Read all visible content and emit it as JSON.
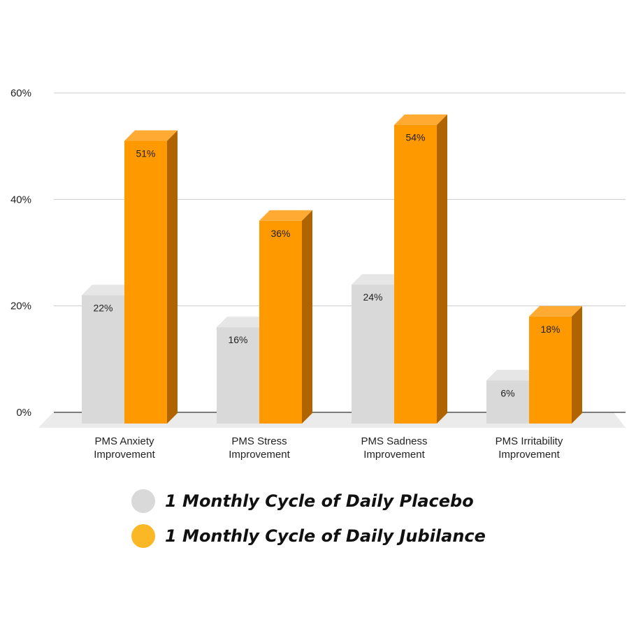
{
  "chart_data": {
    "type": "bar",
    "categories": [
      [
        "PMS Anxiety",
        "Improvement"
      ],
      [
        "PMS Stress",
        "Improvement"
      ],
      [
        "PMS Sadness",
        "Improvement"
      ],
      [
        "PMS Irritability",
        "Improvement"
      ]
    ],
    "series": [
      {
        "name": "1 Monthly Cycle of Daily Placebo",
        "values": [
          22,
          16,
          24,
          6
        ],
        "labels": [
          "22%",
          "16%",
          "24%",
          "6%"
        ],
        "color": "#d9d9d9",
        "side_color": "#9a9a9a",
        "top_color": "#e6e6e6"
      },
      {
        "name": "1 Monthly Cycle of Daily Jubilance",
        "values": [
          51,
          36,
          54,
          18
        ],
        "labels": [
          "51%",
          "36%",
          "54%",
          "18%"
        ],
        "color": "#ff9900",
        "side_color": "#b06400",
        "top_color": "#ffab33"
      }
    ],
    "yticks": [
      "0%",
      "20%",
      "40%",
      "60%"
    ],
    "ylim": [
      0,
      60
    ],
    "gridlines": true,
    "three_d": true,
    "legend_position": "bottom",
    "legend_swatch_colors": [
      "#d9d9d9",
      "#fbb826"
    ],
    "floor_color": "#ebebeb"
  }
}
